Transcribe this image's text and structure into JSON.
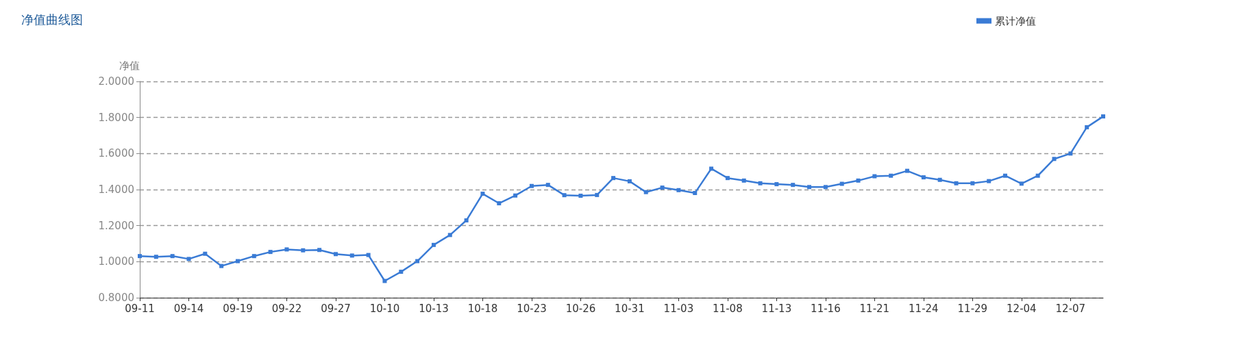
{
  "chart_data": {
    "type": "line",
    "title": "净值曲线图",
    "ylabel": "净值",
    "categories": [
      "09-11",
      null,
      null,
      "09-14",
      null,
      null,
      "09-19",
      null,
      null,
      "09-22",
      null,
      null,
      "09-27",
      null,
      null,
      "10-10",
      null,
      null,
      "10-13",
      null,
      null,
      "10-18",
      null,
      null,
      "10-23",
      null,
      null,
      "10-26",
      null,
      null,
      "10-31",
      null,
      null,
      "11-03",
      null,
      null,
      "11-08",
      null,
      null,
      "11-13",
      null,
      null,
      "11-16",
      null,
      null,
      "11-21",
      null,
      null,
      "11-24",
      null,
      null,
      "11-29",
      null,
      null,
      "12-04",
      null,
      null,
      "12-07",
      null,
      null
    ],
    "series": [
      {
        "name": "累计净值",
        "color": "#3a7bd5",
        "values": [
          1.031,
          1.027,
          1.031,
          1.015,
          1.044,
          0.976,
          1.003,
          1.031,
          1.054,
          1.068,
          1.063,
          1.065,
          1.042,
          1.034,
          1.037,
          0.893,
          0.944,
          1.003,
          1.093,
          1.148,
          1.229,
          1.377,
          1.324,
          1.367,
          1.42,
          1.426,
          1.369,
          1.366,
          1.37,
          1.464,
          1.446,
          1.386,
          1.411,
          1.397,
          1.381,
          1.516,
          1.464,
          1.45,
          1.435,
          1.43,
          1.426,
          1.414,
          1.414,
          1.432,
          1.45,
          1.474,
          1.477,
          1.504,
          1.468,
          1.454,
          1.435,
          1.435,
          1.447,
          1.477,
          1.433,
          1.477,
          1.57,
          1.6,
          1.746,
          1.806
        ]
      }
    ],
    "ylim": [
      0.8,
      2.0
    ],
    "yticks": [
      {
        "value": 0.8,
        "label": "0.8000"
      },
      {
        "value": 1.0,
        "label": "1.0000"
      },
      {
        "value": 1.2,
        "label": "1.2000"
      },
      {
        "value": 1.4,
        "label": "1.4000"
      },
      {
        "value": 1.6,
        "label": "1.6000"
      },
      {
        "value": 1.8,
        "label": "1.8000"
      },
      {
        "value": 2.0,
        "label": "2.0000"
      }
    ],
    "grid": "y",
    "legend": "top right",
    "marker": "square",
    "line_style": "solid"
  }
}
